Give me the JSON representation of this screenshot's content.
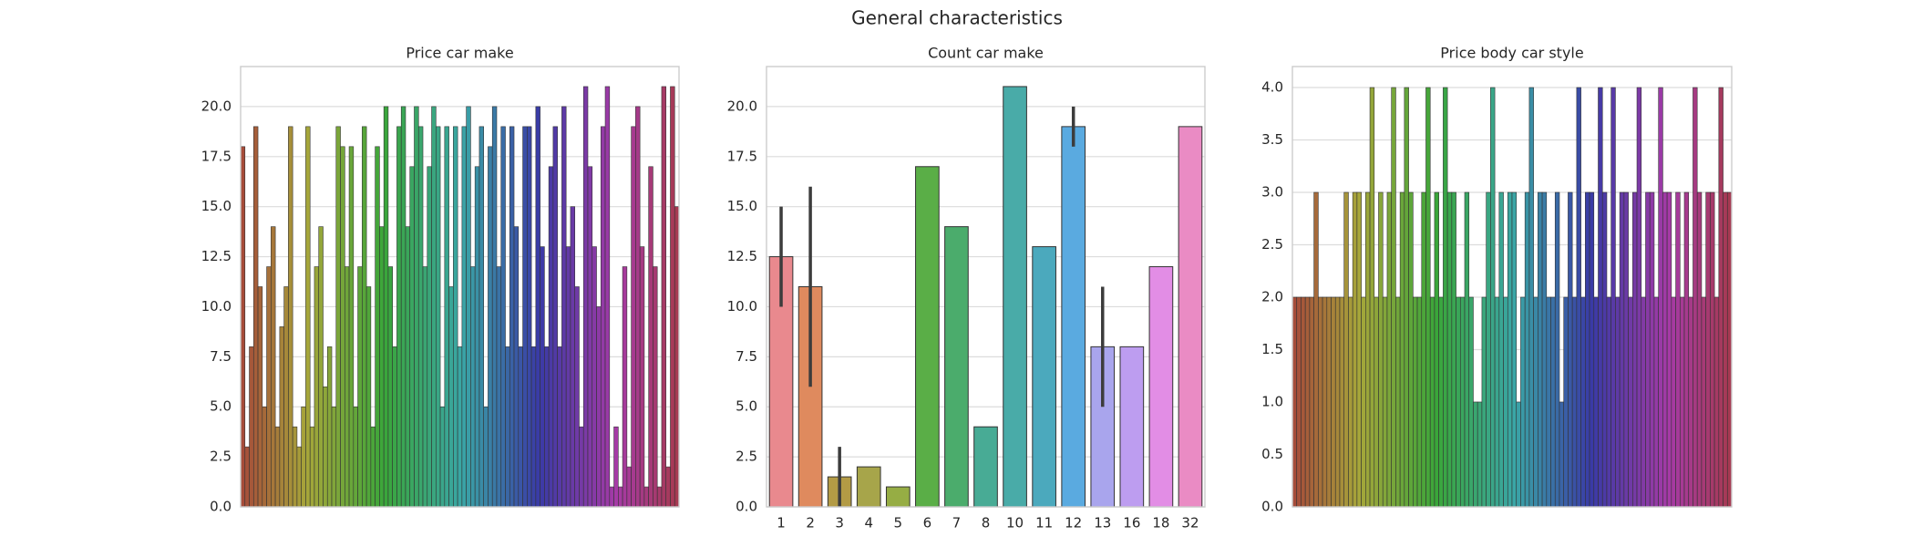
{
  "title": "General characteristics",
  "chart_data": [
    {
      "type": "bar",
      "title": "Price car make",
      "palette": "husl",
      "values": [
        18,
        3,
        8,
        19,
        11,
        5,
        12,
        14,
        4,
        9,
        11,
        19,
        4,
        3,
        5,
        19,
        4,
        12,
        14,
        6,
        8,
        5,
        19,
        18,
        12,
        18,
        5,
        12,
        19,
        11,
        4,
        18,
        14,
        20,
        12,
        8,
        19,
        20,
        14,
        17,
        20,
        19,
        12,
        17,
        20,
        19,
        5,
        19,
        11,
        19,
        8,
        19,
        20,
        12,
        17,
        19,
        5,
        18,
        20,
        12,
        19,
        8,
        19,
        14,
        8,
        19,
        19,
        8,
        20,
        13,
        8,
        17,
        19,
        8,
        20,
        13,
        15,
        11,
        4,
        21,
        17,
        13,
        10,
        19,
        21,
        1,
        4,
        1,
        12,
        2,
        19,
        20,
        13,
        1,
        17,
        12,
        1,
        21,
        2,
        21,
        15
      ],
      "ylim": [
        0,
        22
      ],
      "yticks": [
        {
          "value": 0,
          "label": "0.0"
        },
        {
          "value": 2.5,
          "label": "2.5"
        },
        {
          "value": 5,
          "label": "5.0"
        },
        {
          "value": 7.5,
          "label": "7.5"
        },
        {
          "value": 10,
          "label": "10.0"
        },
        {
          "value": 12.5,
          "label": "12.5"
        },
        {
          "value": 15,
          "label": "15.0"
        },
        {
          "value": 17.5,
          "label": "17.5"
        },
        {
          "value": 20,
          "label": "20.0"
        }
      ],
      "grid": true
    },
    {
      "type": "bar",
      "title": "Count car make",
      "categories": [
        "1",
        "2",
        "3",
        "4",
        "5",
        "6",
        "7",
        "8",
        "10",
        "11",
        "12",
        "13",
        "16",
        "18",
        "32"
      ],
      "values": [
        12.5,
        11,
        1.5,
        2,
        1,
        17,
        14,
        4,
        21,
        13,
        19,
        8,
        8,
        12,
        19
      ],
      "ci": [
        [
          10,
          15
        ],
        [
          6,
          16
        ],
        [
          0,
          3
        ],
        null,
        null,
        null,
        null,
        null,
        null,
        null,
        [
          18,
          20
        ],
        [
          5,
          11
        ],
        null,
        null,
        null
      ],
      "colors": [
        "#e9898e",
        "#df8a5e",
        "#b39b45",
        "#a7a54a",
        "#96ad44",
        "#5aae47",
        "#4bac6c",
        "#48ab95",
        "#49aba8",
        "#4ba9bd",
        "#5aaae0",
        "#a9a5ed",
        "#bd9df0",
        "#e28de5",
        "#ea8bc4"
      ],
      "ylim": [
        0,
        22
      ],
      "yticks": [
        {
          "value": 0,
          "label": "0.0"
        },
        {
          "value": 2.5,
          "label": "2.5"
        },
        {
          "value": 5,
          "label": "5.0"
        },
        {
          "value": 7.5,
          "label": "7.5"
        },
        {
          "value": 10,
          "label": "10.0"
        },
        {
          "value": 12.5,
          "label": "12.5"
        },
        {
          "value": 15,
          "label": "15.0"
        },
        {
          "value": 17.5,
          "label": "17.5"
        },
        {
          "value": 20,
          "label": "20.0"
        }
      ],
      "grid": true
    },
    {
      "type": "bar",
      "title": "Price body car style",
      "palette": "husl",
      "values": [
        2,
        2,
        2,
        2,
        2,
        3,
        2,
        2,
        2,
        2,
        2,
        2,
        3,
        2,
        3,
        3,
        2,
        3,
        4,
        2,
        3,
        2,
        3,
        4,
        2,
        3,
        4,
        3,
        2,
        2,
        3,
        4,
        2,
        3,
        2,
        4,
        3,
        3,
        2,
        2,
        3,
        2,
        1,
        1,
        2,
        3,
        4,
        2,
        3,
        2,
        3,
        3,
        1,
        2,
        3,
        4,
        2,
        3,
        3,
        2,
        2,
        3,
        1,
        2,
        3,
        2,
        4,
        2,
        3,
        3,
        2,
        4,
        3,
        2,
        4,
        2,
        3,
        3,
        2,
        3,
        4,
        2,
        3,
        3,
        2,
        4,
        3,
        3,
        2,
        3,
        2,
        3,
        2,
        4,
        3,
        2,
        3,
        3,
        2,
        4,
        3,
        3
      ],
      "ylim": [
        0,
        4.2
      ],
      "yticks": [
        {
          "value": 0,
          "label": "0.0"
        },
        {
          "value": 0.5,
          "label": "0.5"
        },
        {
          "value": 1,
          "label": "1.0"
        },
        {
          "value": 1.5,
          "label": "1.5"
        },
        {
          "value": 2,
          "label": "2.0"
        },
        {
          "value": 2.5,
          "label": "2.5"
        },
        {
          "value": 3,
          "label": "3.0"
        },
        {
          "value": 3.5,
          "label": "3.5"
        },
        {
          "value": 4,
          "label": "4.0"
        }
      ],
      "grid": true
    }
  ]
}
